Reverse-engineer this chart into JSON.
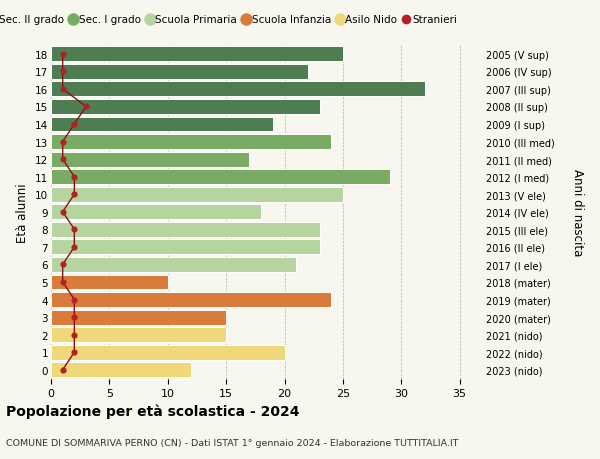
{
  "ages": [
    18,
    17,
    16,
    15,
    14,
    13,
    12,
    11,
    10,
    9,
    8,
    7,
    6,
    5,
    4,
    3,
    2,
    1,
    0
  ],
  "right_labels": [
    "2005 (V sup)",
    "2006 (IV sup)",
    "2007 (III sup)",
    "2008 (II sup)",
    "2009 (I sup)",
    "2010 (III med)",
    "2011 (II med)",
    "2012 (I med)",
    "2013 (V ele)",
    "2014 (IV ele)",
    "2015 (III ele)",
    "2016 (II ele)",
    "2017 (I ele)",
    "2018 (mater)",
    "2019 (mater)",
    "2020 (mater)",
    "2021 (nido)",
    "2022 (nido)",
    "2023 (nido)"
  ],
  "bar_values": [
    25,
    22,
    32,
    23,
    19,
    24,
    17,
    29,
    25,
    18,
    23,
    23,
    21,
    10,
    24,
    15,
    15,
    20,
    12
  ],
  "bar_colors": [
    "#4e7d52",
    "#4e7d52",
    "#4e7d52",
    "#4e7d52",
    "#4e7d52",
    "#7aab65",
    "#7aab65",
    "#7aab65",
    "#b5d4a0",
    "#b5d4a0",
    "#b5d4a0",
    "#b5d4a0",
    "#b5d4a0",
    "#d97b3a",
    "#d97b3a",
    "#d97b3a",
    "#f0d87a",
    "#f0d87a",
    "#f0d87a"
  ],
  "stranieri_values": [
    1,
    1,
    1,
    3,
    2,
    1,
    1,
    2,
    2,
    1,
    2,
    2,
    1,
    1,
    2,
    2,
    2,
    2,
    1
  ],
  "legend_labels": [
    "Sec. II grado",
    "Sec. I grado",
    "Scuola Primaria",
    "Scuola Infanzia",
    "Asilo Nido",
    "Stranieri"
  ],
  "legend_colors": [
    "#4e7d52",
    "#7aab65",
    "#b5d4a0",
    "#d97b3a",
    "#f0d87a",
    "#b22222"
  ],
  "title": "Popolazione per età scolastica - 2024",
  "subtitle": "COMUNE DI SOMMARIVA PERNO (CN) - Dati ISTAT 1° gennaio 2024 - Elaborazione TUTTITALIA.IT",
  "ylabel": "Età alunni",
  "ylabel_right": "Anni di nascita",
  "xlim": [
    0,
    37
  ],
  "background_color": "#f7f7f0",
  "bar_edge_color": "white",
  "stranieri_line_color": "#8b1010",
  "stranieri_dot_color": "#b22222"
}
